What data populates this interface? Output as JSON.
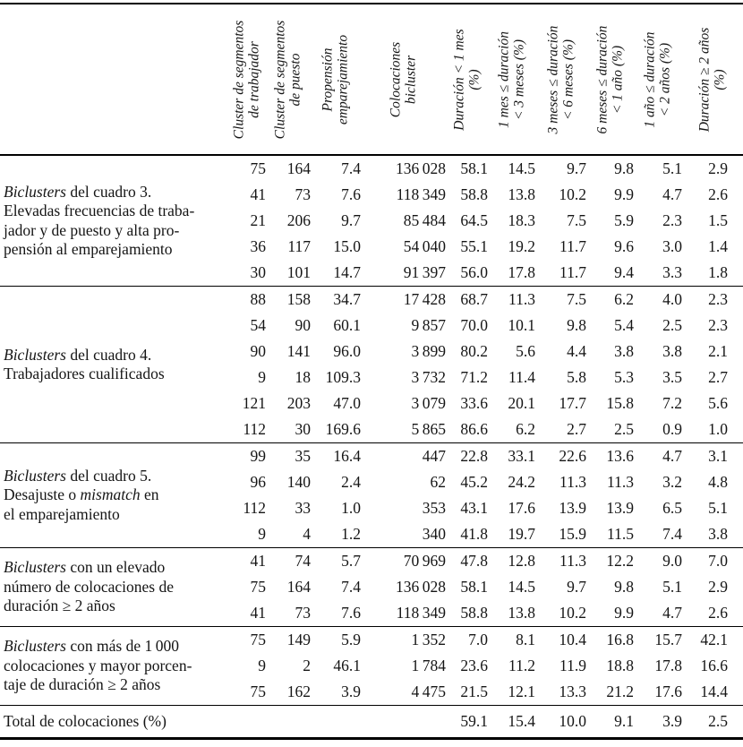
{
  "table": {
    "columns": [
      {
        "line1": "Cluster de segmentos",
        "line2": "de trabajador"
      },
      {
        "line1": "Cluster de segmentos",
        "line2": "de puesto"
      },
      {
        "line1": "Propensión",
        "line2": "emparejamiento"
      },
      {
        "line1": "Colocaciones",
        "line2": "bicluster"
      },
      {
        "line1": "Duración < 1 mes",
        "line2": "(%)"
      },
      {
        "line1": "1 mes ≤ duración",
        "line2": "< 3 meses (%)"
      },
      {
        "line1": "3 meses ≤ duración",
        "line2": "< 6 meses (%)"
      },
      {
        "line1": "6 meses ≤ duración",
        "line2": "< 1 año (%)"
      },
      {
        "line1": "1 año ≤ duración",
        "line2": "< 2 años (%)"
      },
      {
        "line1": "Duración ≥ 2 años",
        "line2": "(%)"
      }
    ],
    "groups": [
      {
        "label": [
          {
            "t": "Biclusters",
            "i": true
          },
          {
            "t": " del cuadro 3.\nElevadas frecuencias de traba-\njador y de puesto y alta pro-\npensión al emparejamiento",
            "i": false
          }
        ],
        "rows": [
          [
            "75",
            "164",
            "7.4",
            "136 028",
            "58.1",
            "14.5",
            "9.7",
            "9.8",
            "5.1",
            "2.9"
          ],
          [
            "41",
            "73",
            "7.6",
            "118 349",
            "58.8",
            "13.8",
            "10.2",
            "9.9",
            "4.7",
            "2.6"
          ],
          [
            "21",
            "206",
            "9.7",
            "85 484",
            "64.5",
            "18.3",
            "7.5",
            "5.9",
            "2.3",
            "1.5"
          ],
          [
            "36",
            "117",
            "15.0",
            "54 040",
            "55.1",
            "19.2",
            "11.7",
            "9.6",
            "3.0",
            "1.4"
          ],
          [
            "30",
            "101",
            "14.7",
            "91 397",
            "56.0",
            "17.8",
            "11.7",
            "9.4",
            "3.3",
            "1.8"
          ]
        ]
      },
      {
        "label": [
          {
            "t": "Biclusters",
            "i": true
          },
          {
            "t": " del cuadro 4.\nTrabajadores cualificados",
            "i": false
          }
        ],
        "rows": [
          [
            "88",
            "158",
            "34.7",
            "17 428",
            "68.7",
            "11.3",
            "7.5",
            "6.2",
            "4.0",
            "2.3"
          ],
          [
            "54",
            "90",
            "60.1",
            "9 857",
            "70.0",
            "10.1",
            "9.8",
            "5.4",
            "2.5",
            "2.3"
          ],
          [
            "90",
            "141",
            "96.0",
            "3 899",
            "80.2",
            "5.6",
            "4.4",
            "3.8",
            "3.8",
            "2.1"
          ],
          [
            "9",
            "18",
            "109.3",
            "3 732",
            "71.2",
            "11.4",
            "5.8",
            "5.3",
            "3.5",
            "2.7"
          ],
          [
            "121",
            "203",
            "47.0",
            "3 079",
            "33.6",
            "20.1",
            "17.7",
            "15.8",
            "7.2",
            "5.6"
          ],
          [
            "112",
            "30",
            "169.6",
            "5 865",
            "86.6",
            "6.2",
            "2.7",
            "2.5",
            "0.9",
            "1.0"
          ]
        ]
      },
      {
        "label": [
          {
            "t": "Biclusters",
            "i": true
          },
          {
            "t": " del cuadro 5.\nDesajuste o ",
            "i": false
          },
          {
            "t": "mismatch",
            "i": true
          },
          {
            "t": " en\nel emparejamiento",
            "i": false
          }
        ],
        "rows": [
          [
            "99",
            "35",
            "16.4",
            "447",
            "22.8",
            "33.1",
            "22.6",
            "13.6",
            "4.7",
            "3.1"
          ],
          [
            "96",
            "140",
            "2.4",
            "62",
            "45.2",
            "24.2",
            "11.3",
            "11.3",
            "3.2",
            "4.8"
          ],
          [
            "112",
            "33",
            "1.0",
            "353",
            "43.1",
            "17.6",
            "13.9",
            "13.9",
            "6.5",
            "5.1"
          ],
          [
            "9",
            "4",
            "1.2",
            "340",
            "41.8",
            "19.7",
            "15.9",
            "11.5",
            "7.4",
            "3.8"
          ]
        ]
      },
      {
        "label": [
          {
            "t": "Biclusters",
            "i": true
          },
          {
            "t": " con un elevado\nnúmero de colocaciones de\nduración ≥ 2 años",
            "i": false
          }
        ],
        "rows": [
          [
            "41",
            "74",
            "5.7",
            "70 969",
            "47.8",
            "12.8",
            "11.3",
            "12.2",
            "9.0",
            "7.0"
          ],
          [
            "75",
            "164",
            "7.4",
            "136 028",
            "58.1",
            "14.5",
            "9.7",
            "9.8",
            "5.1",
            "2.9"
          ],
          [
            "41",
            "73",
            "7.6",
            "118 349",
            "58.8",
            "13.8",
            "10.2",
            "9.9",
            "4.7",
            "2.6"
          ]
        ]
      },
      {
        "label": [
          {
            "t": "Biclusters",
            "i": true
          },
          {
            "t": " con más de 1 000\ncolocaciones y mayor porcen-\ntaje de duración ≥ 2 años",
            "i": false
          }
        ],
        "rows": [
          [
            "75",
            "149",
            "5.9",
            "1 352",
            "7.0",
            "8.1",
            "10.4",
            "16.8",
            "15.7",
            "42.1"
          ],
          [
            "9",
            "2",
            "46.1",
            "1 784",
            "23.6",
            "11.2",
            "11.9",
            "18.8",
            "17.8",
            "16.6"
          ],
          [
            "75",
            "162",
            "3.9",
            "4 475",
            "21.5",
            "12.1",
            "13.3",
            "21.2",
            "17.6",
            "14.4"
          ]
        ]
      }
    ],
    "total": {
      "label": "Total de colocaciones (%)",
      "cells": [
        "",
        "",
        "",
        "",
        "59.1",
        "15.4",
        "10.0",
        "9.1",
        "3.9",
        "2.5"
      ]
    }
  },
  "colors": {
    "text": "#151515",
    "rule": "#000000",
    "background": "#ffffff"
  }
}
